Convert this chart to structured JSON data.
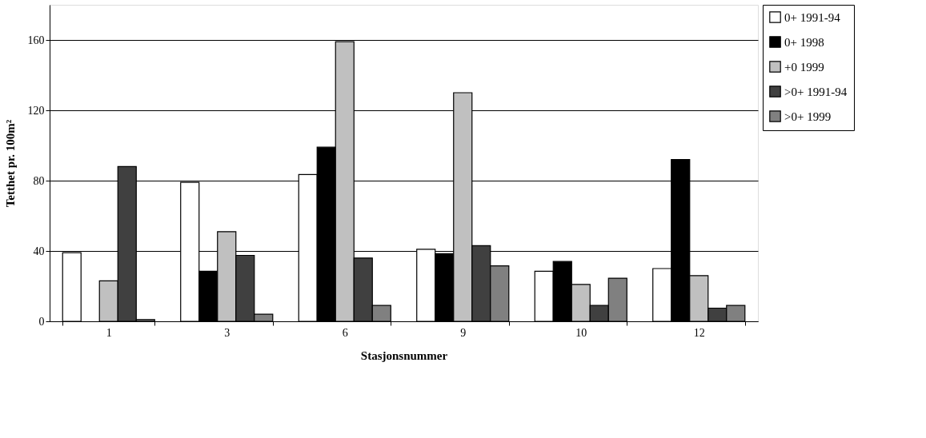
{
  "chart_data": {
    "type": "bar",
    "xlabel": "Stasjonsnummer",
    "ylabel": "Tetthet pr. 100m²",
    "categories": [
      "1",
      "3",
      "6",
      "9",
      "10",
      "12"
    ],
    "series": [
      {
        "name": "0+ 1991-94",
        "color": "#ffffff",
        "values": [
          39,
          79,
          83.5,
          41,
          28.5,
          30
        ]
      },
      {
        "name": "0+ 1998",
        "color": "#000000",
        "values": [
          null,
          28.5,
          99,
          38.5,
          34,
          92
        ]
      },
      {
        "name": "+0 1999",
        "color": "#c0c0c0",
        "values": [
          23,
          51,
          159,
          130,
          21,
          26
        ]
      },
      {
        "name": ">0+ 1991-94",
        "color": "#404040",
        "values": [
          88,
          37.5,
          36,
          43,
          9,
          7.5
        ]
      },
      {
        "name": ">0+ 1999",
        "color": "#808080",
        "values": [
          1,
          4,
          9,
          31.5,
          24.5,
          9
        ]
      }
    ],
    "ylim": [
      0,
      180
    ],
    "yticks": [
      0,
      40,
      80,
      120,
      160
    ],
    "grid": "y",
    "legend": "right"
  }
}
